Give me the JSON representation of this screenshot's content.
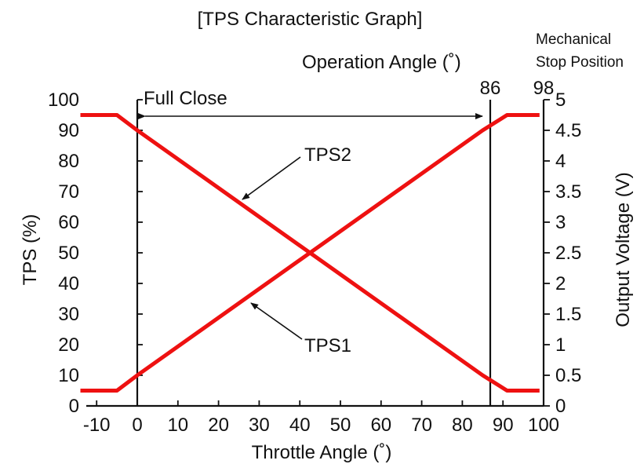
{
  "chart_data": {
    "type": "line",
    "title": "[TPS Characteristic Graph]",
    "xlabel": "Throttle Angle (˚)",
    "ylabel": "TPS (%)",
    "y2label": "Output Voltage (V)",
    "xlim": [
      -10,
      100
    ],
    "ylim": [
      0,
      100
    ],
    "y2lim": [
      0,
      5
    ],
    "x_ticks": [
      -10,
      0,
      10,
      20,
      30,
      40,
      50,
      60,
      70,
      80,
      90,
      100
    ],
    "y_ticks": [
      0,
      10,
      20,
      30,
      40,
      50,
      60,
      70,
      80,
      90,
      100
    ],
    "y2_ticks": [
      {
        "value": 0,
        "label": "0"
      },
      {
        "value": 0.5,
        "label": "0.5"
      },
      {
        "value": 1,
        "label": "1"
      },
      {
        "value": 1.5,
        "label": "1.5"
      },
      {
        "value": 2,
        "label": "2"
      },
      {
        "value": 2.5,
        "label": "2.5"
      },
      {
        "value": 3,
        "label": "3"
      },
      {
        "value": 3.5,
        "label": "3.5"
      },
      {
        "value": 4,
        "label": "4"
      },
      {
        "value": 4.5,
        "label": "4.5"
      },
      {
        "value": 5,
        "label": "5"
      }
    ],
    "series": [
      {
        "name": "TPS1",
        "color": "#ee1111",
        "x": [
          -14,
          -5,
          0,
          85,
          91,
          99
        ],
        "y": [
          5,
          5,
          10,
          90,
          95,
          95
        ]
      },
      {
        "name": "TPS2",
        "color": "#ee1111",
        "x": [
          -14,
          -5,
          0,
          85,
          91,
          99
        ],
        "y": [
          95,
          95,
          90,
          10,
          5,
          5
        ]
      }
    ],
    "vlines": [
      {
        "x": 0,
        "label": "Full Close"
      },
      {
        "x": 86,
        "label": "86"
      }
    ],
    "annotations": {
      "operation_angle": "Operation Angle (˚)",
      "mechanical_stop_line1": "Mechanical",
      "mechanical_stop_line2": "Stop Position",
      "mechanical_stop_value": "98",
      "tps1_label": "TPS1",
      "tps2_label": "TPS2"
    }
  }
}
